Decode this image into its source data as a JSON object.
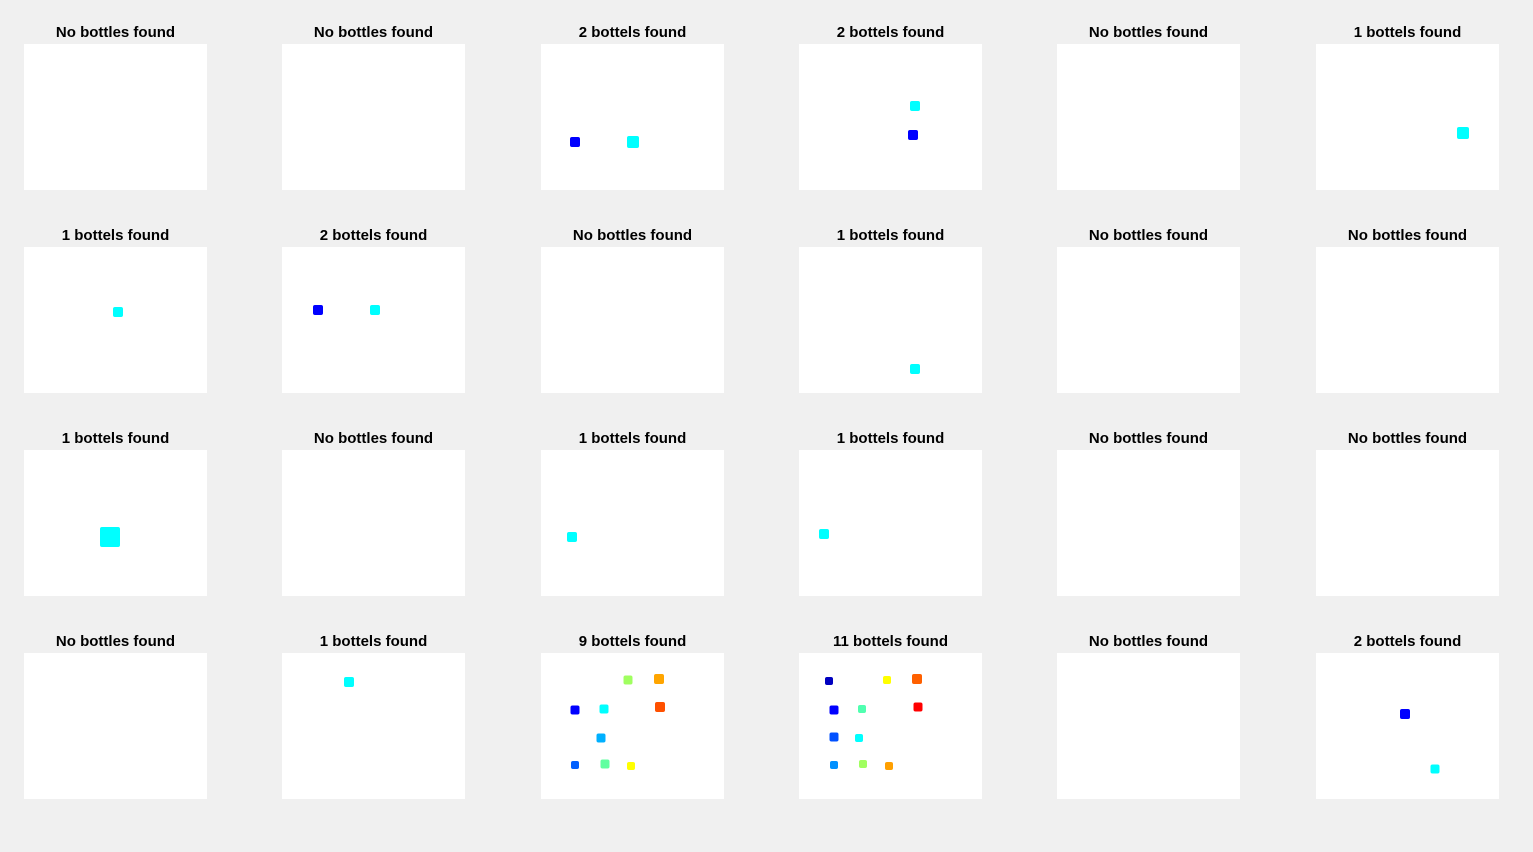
{
  "panels": [
    {
      "title": "No bottles found"
    },
    {
      "title": "No bottles found"
    },
    {
      "title": "2 bottels found"
    },
    {
      "title": "2 bottels found"
    },
    {
      "title": "No bottles found"
    },
    {
      "title": "1 bottels found"
    },
    {
      "title": "1 bottels found"
    },
    {
      "title": "2 bottels found"
    },
    {
      "title": "No bottles found"
    },
    {
      "title": "1 bottels found"
    },
    {
      "title": "No bottles found"
    },
    {
      "title": "No bottles found"
    },
    {
      "title": "1 bottels found"
    },
    {
      "title": "No bottles found"
    },
    {
      "title": "1 bottels found"
    },
    {
      "title": "1 bottels found"
    },
    {
      "title": "No bottles found"
    },
    {
      "title": "No bottles found"
    },
    {
      "title": "No bottles found"
    },
    {
      "title": "1 bottels found"
    },
    {
      "title": "9 bottels found"
    },
    {
      "title": "11 bottels found"
    },
    {
      "title": "No bottles found"
    },
    {
      "title": "2 bottels found"
    }
  ]
}
